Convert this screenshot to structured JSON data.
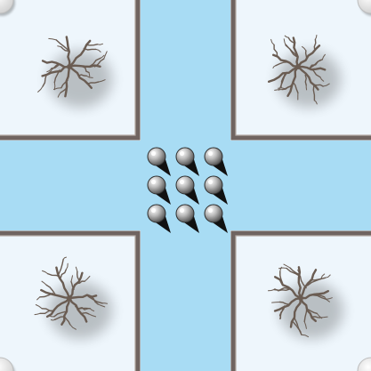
{
  "board": {
    "colors": {
      "water": "#a8dcf4",
      "lot": "#eef6fc",
      "wall": "#6f6460",
      "wall_highlight": "#b4aaa4",
      "tree": "#6a5c52",
      "unit_light": "#f4f4f4",
      "unit_dark": "#4a4a4a",
      "unit_pointer": "#111111",
      "corner_marker": "#e2e2e2"
    },
    "lots": [
      {
        "id": "top-left",
        "icon": "bare-tree-icon"
      },
      {
        "id": "top-right",
        "icon": "bare-tree-icon"
      },
      {
        "id": "bottom-left",
        "icon": "bare-tree-icon"
      },
      {
        "id": "bottom-right",
        "icon": "bare-tree-icon"
      }
    ],
    "units": {
      "icon": "pin-unit-icon",
      "rows": 3,
      "cols": 3,
      "count": 9,
      "heading": "south-east"
    },
    "corner_markers": [
      "top-left",
      "top-right",
      "bottom-left",
      "bottom-right"
    ]
  }
}
